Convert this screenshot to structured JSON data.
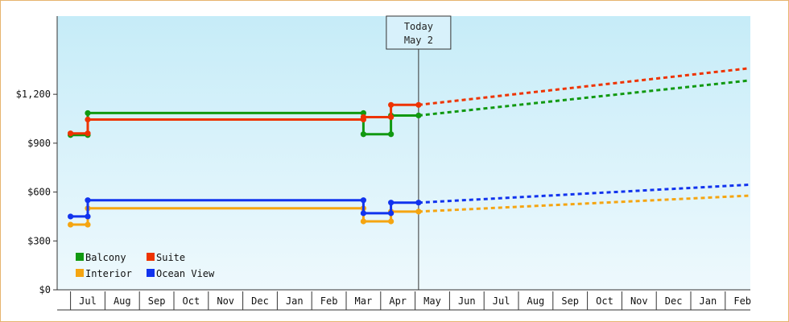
{
  "chart_data": {
    "type": "line",
    "y_axis": {
      "ticks": [
        "$0",
        "$300",
        "$600",
        "$900",
        "$1,200"
      ],
      "tick_values": [
        0,
        300,
        600,
        900,
        1200
      ],
      "ylim": [
        0,
        1200
      ]
    },
    "x_axis": {
      "months": [
        "Jul",
        "Aug",
        "Sep",
        "Oct",
        "Nov",
        "Dec",
        "Jan",
        "Feb",
        "Mar",
        "Apr",
        "May",
        "Jun",
        "Jul",
        "Aug",
        "Sep",
        "Oct",
        "Nov",
        "Dec",
        "Jan",
        "Feb"
      ]
    },
    "today_marker": {
      "line1": "Today",
      "line2": "May 2"
    },
    "grid": false,
    "legend_placement": "bottom-left",
    "series": [
      {
        "name": "Balcony",
        "color": "#119911",
        "points": [
          [
            -0.5,
            950
          ],
          [
            0,
            950
          ],
          [
            0,
            1085
          ],
          [
            8,
            1085
          ],
          [
            8,
            955
          ],
          [
            8.8,
            955
          ],
          [
            8.8,
            1070
          ],
          [
            9.6,
            1070
          ]
        ],
        "forecast": [
          [
            9.6,
            1070
          ],
          [
            19.95,
            1285
          ]
        ]
      },
      {
        "name": "Suite",
        "color": "#ee3300",
        "points": [
          [
            -0.5,
            960
          ],
          [
            0,
            960
          ],
          [
            0,
            1045
          ],
          [
            8,
            1045
          ],
          [
            8,
            1060
          ],
          [
            8.8,
            1060
          ],
          [
            8.8,
            1135
          ],
          [
            9.6,
            1135
          ]
        ],
        "forecast": [
          [
            9.6,
            1135
          ],
          [
            19.95,
            1360
          ]
        ]
      },
      {
        "name": "Interior",
        "color": "#f5a511",
        "points": [
          [
            -0.5,
            400
          ],
          [
            0,
            400
          ],
          [
            0,
            500
          ],
          [
            8,
            500
          ],
          [
            8,
            420
          ],
          [
            8.8,
            420
          ],
          [
            8.8,
            480
          ],
          [
            9.6,
            480
          ]
        ],
        "forecast": [
          [
            9.6,
            480
          ],
          [
            19.95,
            578
          ]
        ]
      },
      {
        "name": "Ocean View",
        "color": "#1133ee",
        "points": [
          [
            -0.5,
            450
          ],
          [
            0,
            450
          ],
          [
            0,
            550
          ],
          [
            8,
            550
          ],
          [
            8,
            470
          ],
          [
            8.8,
            470
          ],
          [
            8.8,
            535
          ],
          [
            9.6,
            535
          ]
        ],
        "forecast": [
          [
            9.6,
            535
          ],
          [
            19.95,
            645
          ]
        ]
      }
    ]
  }
}
